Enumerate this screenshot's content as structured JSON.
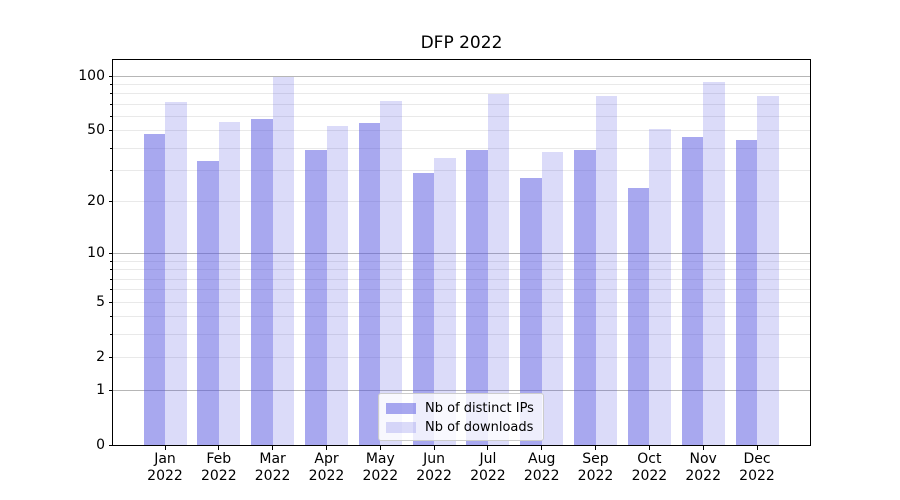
{
  "title": "DFP 2022",
  "chart_data": {
    "type": "bar",
    "title": "DFP 2022",
    "categories": [
      "Jan 2022",
      "Feb 2022",
      "Mar 2022",
      "Apr 2022",
      "May 2022",
      "Jun 2022",
      "Jul 2022",
      "Aug 2022",
      "Sep 2022",
      "Oct 2022",
      "Nov 2022",
      "Dec 2022"
    ],
    "series": [
      {
        "name": "Nb of distinct IPs",
        "color": "rgba(81,81,223,0.5)",
        "values": [
          48,
          34,
          58,
          39,
          55,
          29,
          39,
          27,
          39,
          24,
          46,
          44
        ]
      },
      {
        "name": "Nb of downloads",
        "color": "rgba(75,75,225,0.2)",
        "values": [
          72,
          56,
          98,
          53,
          73,
          35,
          79,
          38,
          77,
          51,
          92,
          77
        ]
      }
    ],
    "xlabel": "",
    "ylabel": "",
    "y_scale": "log1p",
    "ylim": [
      0,
      122
    ],
    "y_tick_labels": [
      0,
      1,
      2,
      5,
      10,
      20,
      50,
      100
    ],
    "y_major_gridlines": [
      1,
      10,
      100
    ],
    "y_minor_gridlines": [
      2,
      3,
      4,
      5,
      6,
      7,
      8,
      9,
      20,
      30,
      40,
      50,
      60,
      70,
      80,
      90
    ],
    "grid": true,
    "legend_position": "lower center"
  },
  "colors": {
    "major_grid": "#b6b6b6",
    "minor_grid": "#e9e9e9",
    "axis": "#000000",
    "text": "#000000",
    "legend_border": "#cccccc"
  }
}
